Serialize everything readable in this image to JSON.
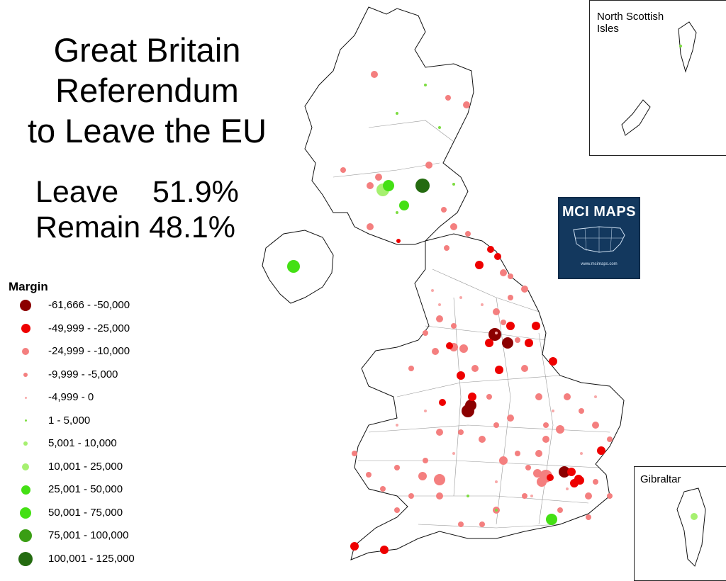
{
  "title": {
    "line1": "Great Britain",
    "line2": "Referendum",
    "line3": "to Leave the EU"
  },
  "results": {
    "leave": "Leave    51.9%",
    "remain": "Remain 48.1%"
  },
  "legend": {
    "title": "Margin",
    "items": [
      {
        "label": "-61,666 - -50,000",
        "color": "#8b0000",
        "size": 16
      },
      {
        "label": "-49,999 - -25,000",
        "color": "#ee0000",
        "size": 13
      },
      {
        "label": "-24,999 - -10,000",
        "color": "#f47f7f",
        "size": 10
      },
      {
        "label": "-9,999 - -5,000",
        "color": "#f47f7f",
        "size": 6
      },
      {
        "label": "-4,999 - 0",
        "color": "#f8a8a8",
        "size": 3
      },
      {
        "label": "1 - 5,000",
        "color": "#7cdc40",
        "size": 3
      },
      {
        "label": "5,001 - 10,000",
        "color": "#a6f070",
        "size": 6
      },
      {
        "label": "10,001 - 25,000",
        "color": "#a6f070",
        "size": 10
      },
      {
        "label": "25,001 - 50,000",
        "color": "#44e014",
        "size": 13
      },
      {
        "label": "50,001 - 75,000",
        "color": "#44e014",
        "size": 16
      },
      {
        "label": "75,001 - 100,000",
        "color": "#3a9e14",
        "size": 18
      },
      {
        "label": "100,001 - 125,000",
        "color": "#246b10",
        "size": 20
      }
    ]
  },
  "insets": {
    "north_scottish_isles": "North Scottish\nIsles",
    "gibraltar": "Gibraltar"
  },
  "badge": {
    "title": "MCI MAPS",
    "subtitle": "www.mcimaps.com"
  }
}
